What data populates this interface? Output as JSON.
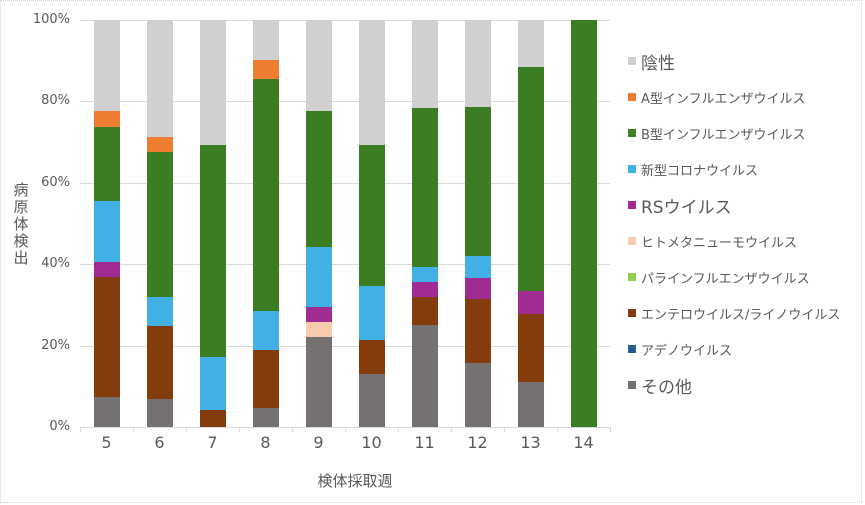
{
  "chart_data": {
    "type": "bar",
    "stacked": true,
    "percent_stacked": true,
    "title": "",
    "xlabel": "検体採取週",
    "ylabel": "病原体検出",
    "ylim": [
      0,
      100
    ],
    "yticks": [
      "0%",
      "20%",
      "40%",
      "60%",
      "80%",
      "100%"
    ],
    "grid": true,
    "legend_position": "right",
    "categories": [
      "5",
      "6",
      "7",
      "8",
      "9",
      "10",
      "11",
      "12",
      "13",
      "14"
    ],
    "series": [
      {
        "name": "その他",
        "color": "#767171",
        "values": [
          7.3,
          7.0,
          0,
          4.7,
          22.1,
          13.0,
          25.0,
          15.8,
          11.1,
          0
        ]
      },
      {
        "name": "アデノウイルス",
        "color": "#255e91",
        "values": [
          0,
          0,
          0,
          0,
          0,
          0,
          0,
          0,
          0,
          0
        ]
      },
      {
        "name": "エンテロウイルス/ライノウイルス",
        "color": "#843c0c",
        "values": [
          29.6,
          17.8,
          4.2,
          14.2,
          0,
          8.5,
          7.0,
          15.7,
          16.6,
          0
        ]
      },
      {
        "name": "パラインフルエンザウイルス",
        "color": "#92d050",
        "values": [
          0,
          0,
          0,
          0,
          0,
          0,
          0,
          0,
          0,
          0
        ]
      },
      {
        "name": "ヒトメタニューモウイルス",
        "color": "#f8cbad",
        "values": [
          0,
          0,
          0,
          0,
          3.7,
          0,
          0,
          0,
          0,
          0
        ]
      },
      {
        "name": "RSウイルス",
        "color": "#a02b93",
        "values": [
          3.6,
          0,
          0,
          0,
          3.7,
          0,
          3.6,
          5.2,
          5.6,
          0
        ]
      },
      {
        "name": "新型コロナウイルス",
        "color": "#41b0e4",
        "values": [
          15.0,
          7.2,
          13.1,
          9.6,
          14.8,
          13.1,
          3.6,
          5.3,
          0,
          0
        ]
      },
      {
        "name": "B型インフルエンザウイルス",
        "color": "#3a7d22",
        "values": [
          18.3,
          35.6,
          52.0,
          57.0,
          33.3,
          34.7,
          39.2,
          36.6,
          55.2,
          100
        ]
      },
      {
        "name": "A型インフルエンザウイルス",
        "color": "#ed7d31",
        "values": [
          3.8,
          3.7,
          0,
          4.7,
          0,
          0,
          0,
          0,
          0,
          0
        ]
      },
      {
        "name": "陰性",
        "color": "#d0d0d0",
        "values": [
          22.4,
          28.7,
          30.7,
          9.8,
          22.4,
          30.7,
          21.6,
          21.4,
          11.5,
          0
        ]
      }
    ]
  },
  "axis": {
    "y_ticks": [
      "0%",
      "20%",
      "40%",
      "60%",
      "80%",
      "100%"
    ],
    "x_ticks": [
      "5",
      "6",
      "7",
      "8",
      "9",
      "10",
      "11",
      "12",
      "13",
      "14"
    ],
    "x_title": "検体採取週",
    "y_title": "病原体検出"
  },
  "legend": [
    {
      "label": "陰性",
      "color": "#cfcfcf"
    },
    {
      "label": "A型インフルエンザウイルス",
      "color": "#ed7d31"
    },
    {
      "label": "B型インフルエンザウイルス",
      "color": "#3a7d22"
    },
    {
      "label": "新型コロナウイルス",
      "color": "#41b0e4"
    },
    {
      "label": "RSウイルス",
      "color": "#a02b93"
    },
    {
      "label": "ヒトメタニューモウイルス",
      "color": "#f8cbad"
    },
    {
      "label": "パラインフルエンザウイルス",
      "color": "#92d050"
    },
    {
      "label": "エンテロウイルス/ライノウイルス",
      "color": "#843c0c"
    },
    {
      "label": "アデノウイルス",
      "color": "#255e91"
    },
    {
      "label": "その他",
      "color": "#767171"
    }
  ]
}
